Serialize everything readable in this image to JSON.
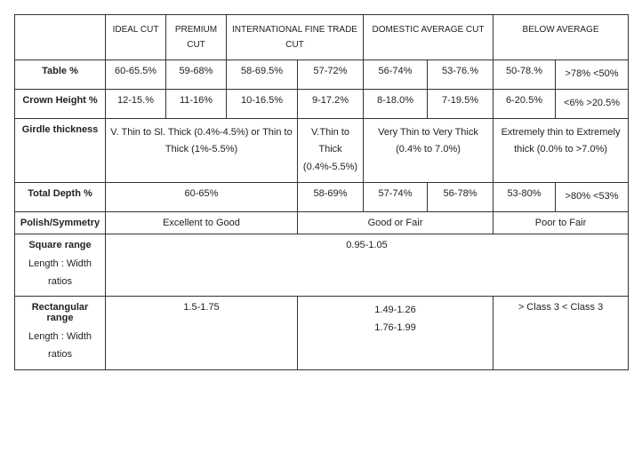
{
  "headers": {
    "ideal": "IDEAL CUT",
    "premium": "PREMIUM CUT",
    "intl": "INTERNATIONAL FINE TRADE CUT",
    "domestic": "DOMESTIC AVERAGE CUT",
    "below": "BELOW AVERAGE"
  },
  "rows": {
    "table": {
      "label": "Table %",
      "c1": "60-65.5%",
      "c2": "59-68%",
      "c3": "58-69.5%",
      "c4": "57-72%",
      "c5": "56-74%",
      "c6": "53-76.%",
      "c7": "50-78.%",
      "c8": ">78% <50%"
    },
    "crown": {
      "label": "Crown Height %",
      "c1": "12-15.%",
      "c2": "11-16%",
      "c3": "10-16.5%",
      "c4": "9-17.2%",
      "c5": "8-18.0%",
      "c6": "7-19.5%",
      "c7": "6-20.5%",
      "c8": "<6% >20.5%"
    },
    "girdle": {
      "label": "Girdle thickness",
      "left3": "V. Thin to Sl. Thick (0.4%-4.5%) or Thin to Thick (1%-5.5%)",
      "c4": "V.Thin to Thick (0.4%-5.5%)",
      "mid2": "Very Thin to Very Thick (0.4% to 7.0%)",
      "right2": "Extremely thin to Extremely thick (0.0% to >7.0%)"
    },
    "depth": {
      "label": "Total Depth %",
      "left3": "60-65%",
      "c4": "58-69%",
      "c5": "57-74%",
      "c6": "56-78%",
      "c7": "53-80%",
      "c8": ">80% <53%"
    },
    "polish": {
      "label": "Polish/Symmetry",
      "left3": "Excellent to Good",
      "mid3": "Good or Fair",
      "right2": "Poor to Fair"
    },
    "square": {
      "label": "Square range",
      "sub": "Length : Width ratios",
      "all": "0.95-1.05"
    },
    "rect": {
      "label": "Rectangular range",
      "sub": "Length : Width ratios",
      "left3": "1.5-1.75",
      "mid3a": "1.49-1.26",
      "mid3b": "1.76-1.99",
      "right2": "> Class 3 < Class 3"
    }
  }
}
